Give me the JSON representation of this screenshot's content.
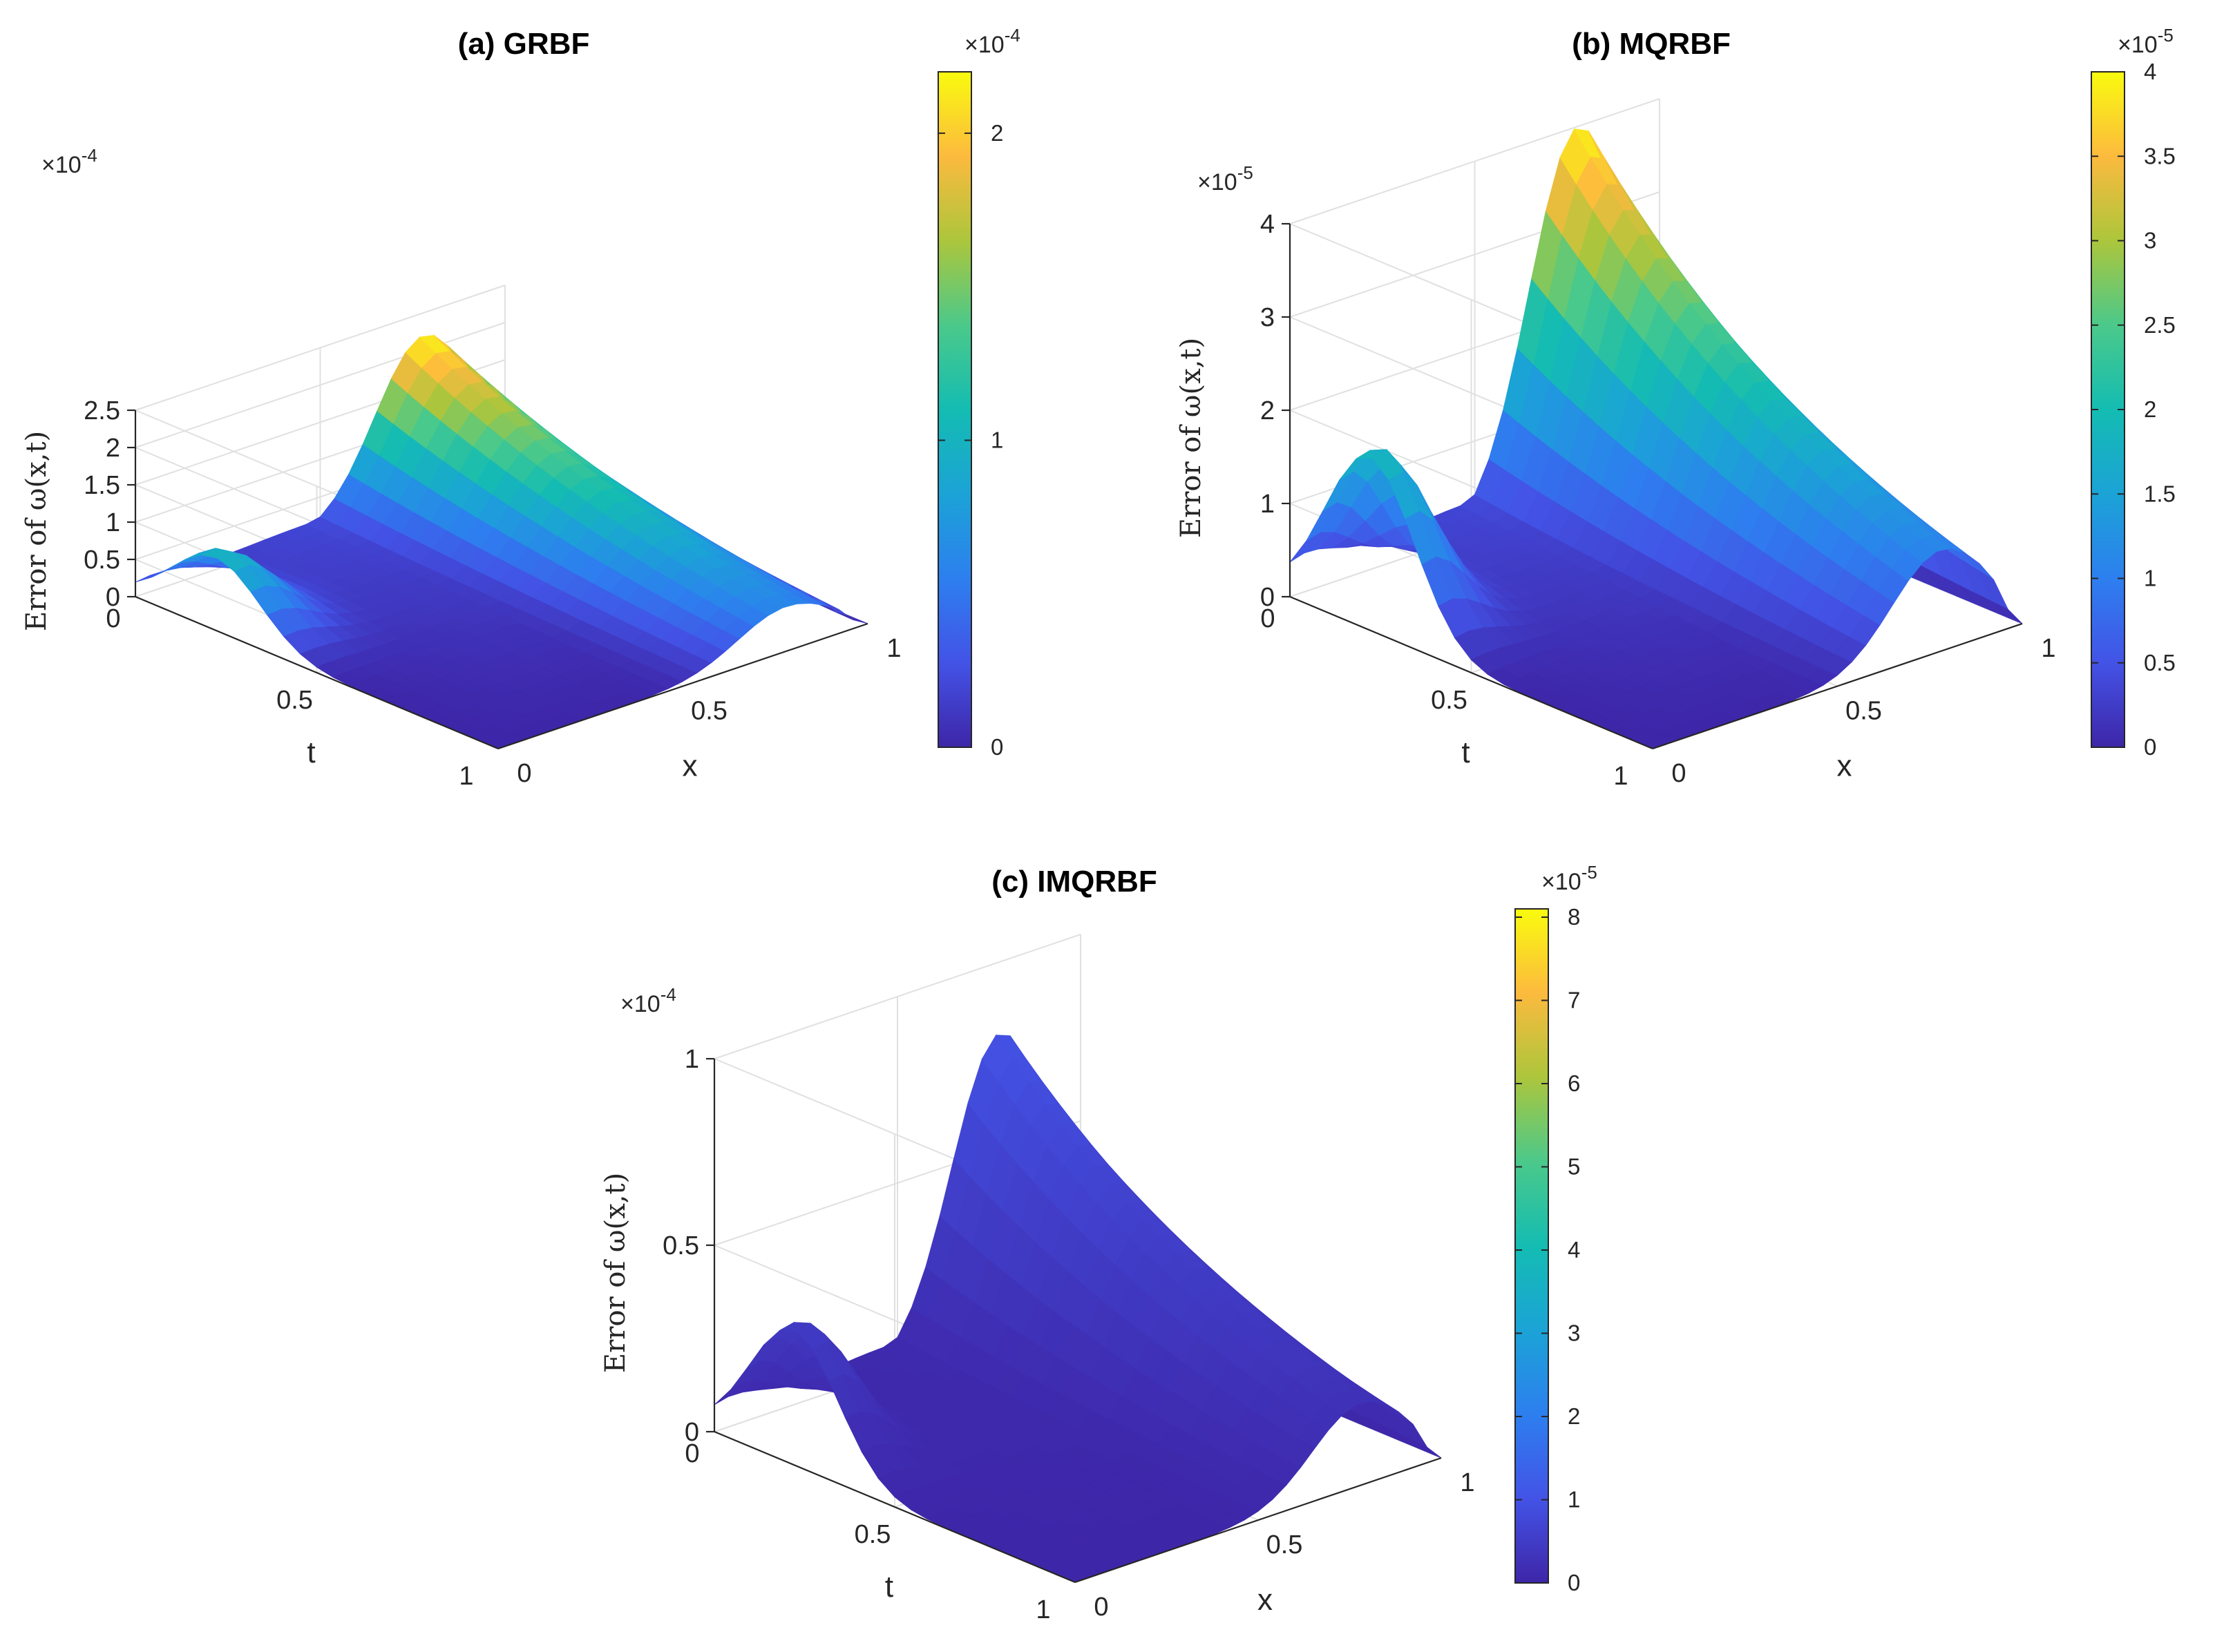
{
  "chart_data": [
    {
      "type": "surface",
      "title": "(a) GRBF",
      "xlabel": "x",
      "tlabel": "t",
      "zlabel": "Error of ω(x,t)",
      "z_exponent": "×10^-4",
      "x_ticks": [
        "0",
        "0.5",
        "1"
      ],
      "t_ticks": [
        "0",
        "0.5",
        "1"
      ],
      "z_ticks": [
        "0",
        "0.5",
        "1",
        "1.5",
        "2",
        "2.5"
      ],
      "z_tick_values": [
        0,
        0.5,
        1,
        1.5,
        2,
        2.5
      ],
      "zlim": [
        0,
        2.5
      ],
      "peak": {
        "x": 0.8,
        "t": 0.0,
        "value": 2.2
      },
      "side_ridge_peak": {
        "x": 0.0,
        "t": 0.22,
        "value": 1.0
      },
      "colorbar": {
        "exponent": "×10^-4",
        "ticks": [
          "0",
          "1",
          "2"
        ],
        "tick_values": [
          0,
          1,
          2
        ],
        "range": [
          0,
          2.2
        ]
      }
    },
    {
      "type": "surface",
      "title": "(b) MQRBF",
      "xlabel": "x",
      "tlabel": "t",
      "zlabel": "Error of ω(x,t)",
      "z_exponent": "×10^-5",
      "x_ticks": [
        "0",
        "0.5",
        "1"
      ],
      "t_ticks": [
        "0",
        "0.5",
        "1"
      ],
      "z_ticks": [
        "0",
        "1",
        "2",
        "3",
        "4"
      ],
      "z_tick_values": [
        0,
        1,
        2,
        3,
        4
      ],
      "zlim": [
        0,
        4
      ],
      "peak": {
        "x": 0.8,
        "t": 0.0,
        "value": 4.0
      },
      "side_ridge_peak": {
        "x": 0.0,
        "t": 0.22,
        "value": 1.9
      },
      "colorbar": {
        "exponent": "×10^-5",
        "ticks": [
          "0",
          "0.5",
          "1",
          "1.5",
          "2",
          "2.5",
          "3",
          "3.5",
          "4"
        ],
        "tick_values": [
          0,
          0.5,
          1,
          1.5,
          2,
          2.5,
          3,
          3.5,
          4
        ],
        "range": [
          0,
          4.0
        ]
      }
    },
    {
      "type": "surface",
      "title": "(c) IMQRBF",
      "xlabel": "x",
      "tlabel": "t",
      "zlabel": "Error of ω(x,t)",
      "z_exponent": "×10^-4",
      "x_ticks": [
        "0",
        "0.5",
        "1"
      ],
      "t_ticks": [
        "0",
        "0.5",
        "1"
      ],
      "z_ticks": [
        "0",
        "0.5",
        "1"
      ],
      "z_tick_values": [
        0,
        0.5,
        1
      ],
      "zlim": [
        0,
        1
      ],
      "peak": {
        "x": 0.8,
        "t": 0.0,
        "value": 0.81
      },
      "side_ridge_peak": {
        "x": 0.0,
        "t": 0.22,
        "value": 0.37
      },
      "colorbar": {
        "exponent": "×10^-5",
        "ticks": [
          "0",
          "1",
          "2",
          "3",
          "4",
          "5",
          "6",
          "7",
          "8"
        ],
        "tick_values": [
          0,
          1,
          2,
          3,
          4,
          5,
          6,
          7,
          8
        ],
        "range": [
          0,
          8.1
        ]
      }
    }
  ]
}
